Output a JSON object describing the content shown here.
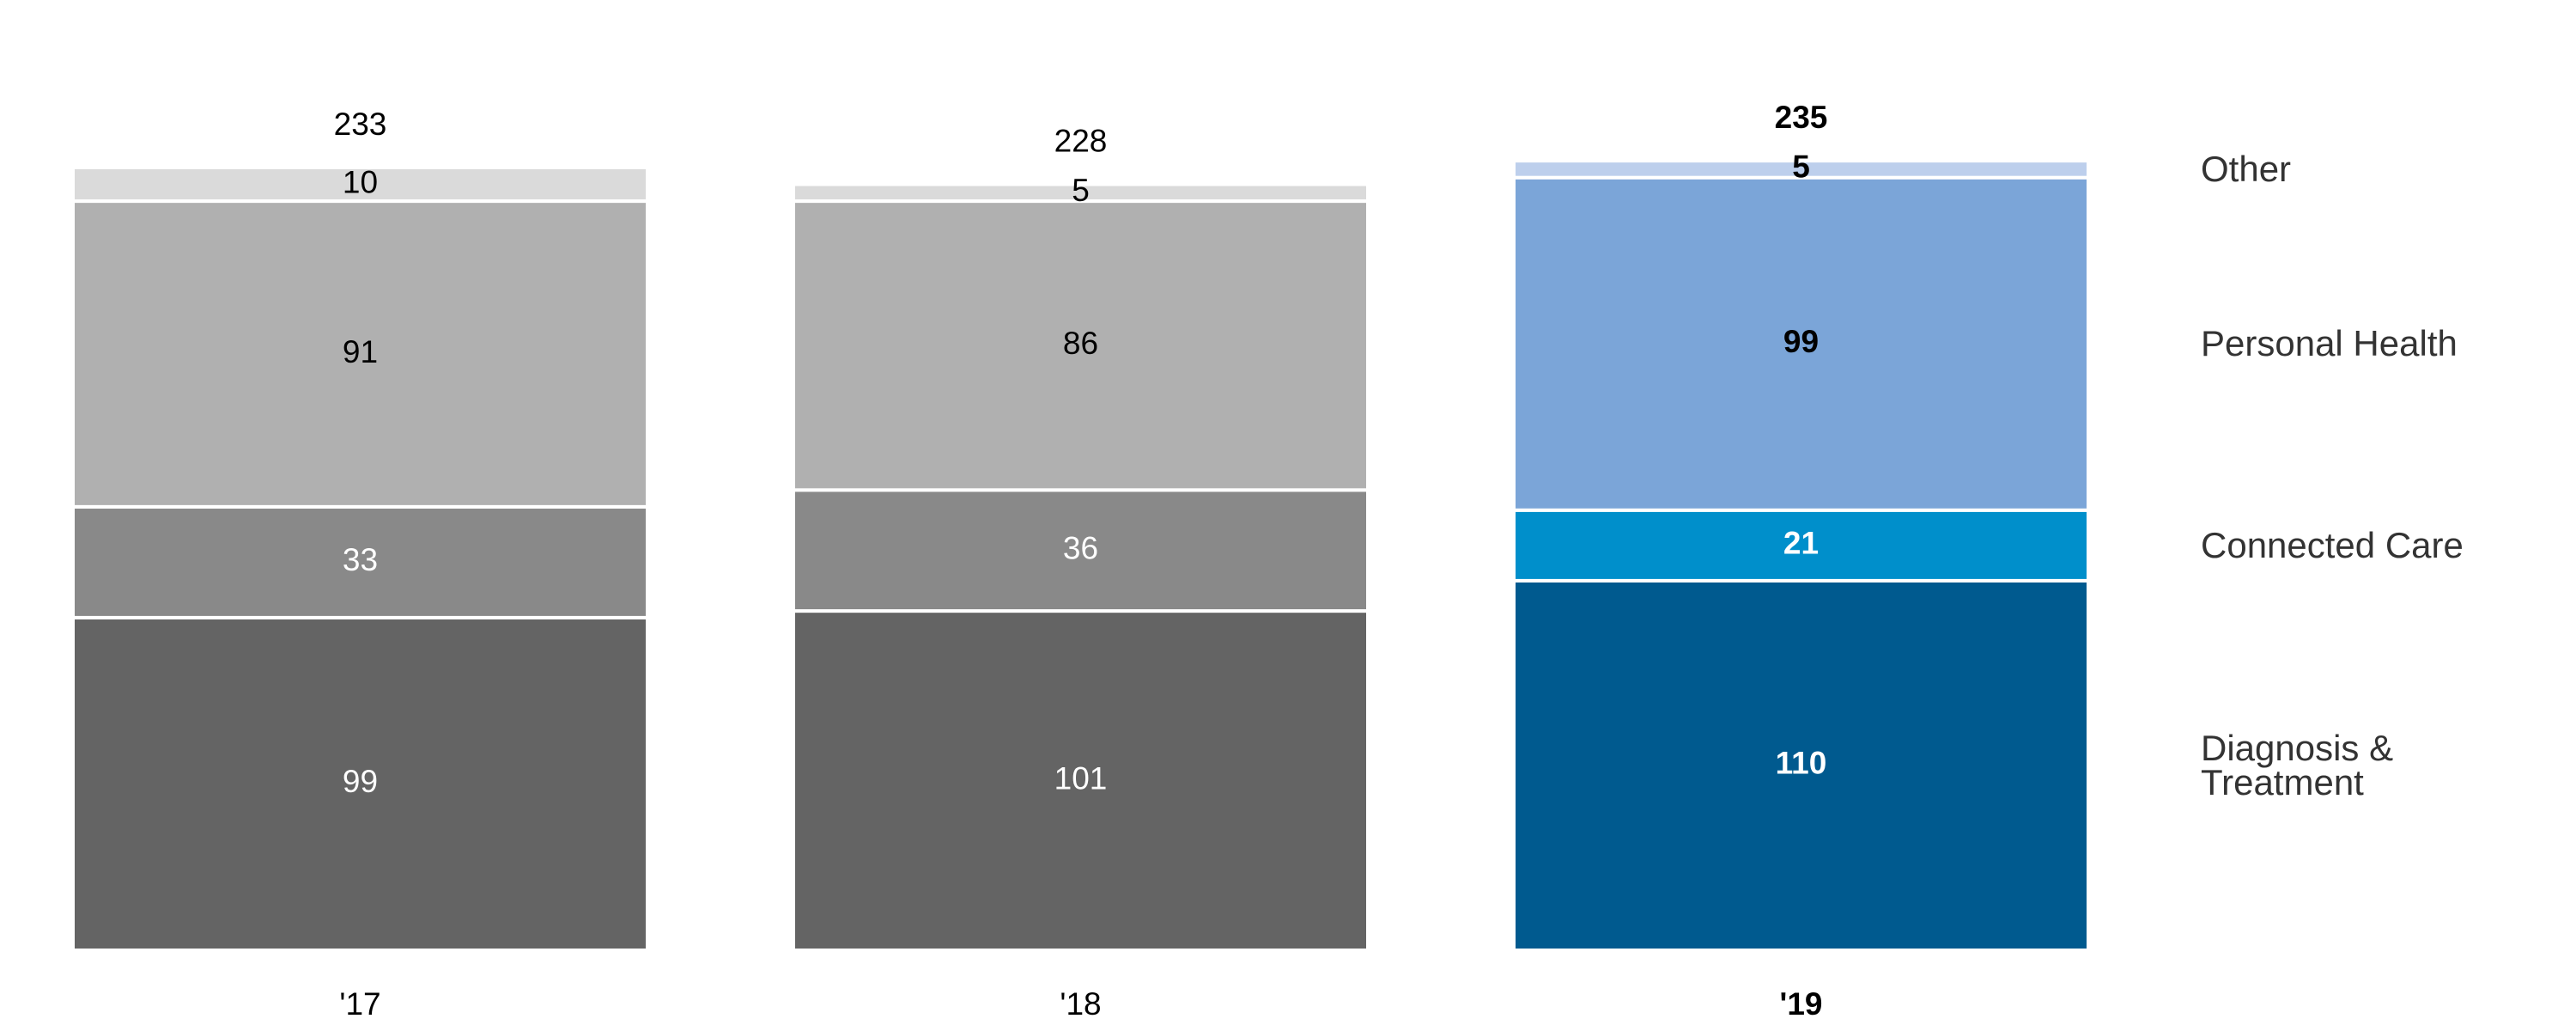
{
  "chart_data": {
    "type": "stacked-bar",
    "categories": [
      "'17",
      "'18",
      "'19"
    ],
    "series": [
      {
        "name": "Diagnosis & Treatment",
        "colors": [
          "#646464",
          "#646464",
          "#005a8f"
        ],
        "values": [
          99,
          101,
          110
        ]
      },
      {
        "name": "Connected Care",
        "colors": [
          "#898989",
          "#898989",
          "#008fcb"
        ],
        "values": [
          33,
          36,
          21
        ]
      },
      {
        "name": "Personal Health",
        "colors": [
          "#b0b0b0",
          "#b0b0b0",
          "#7ba5d8"
        ],
        "values": [
          91,
          86,
          99
        ]
      },
      {
        "name": "Other",
        "colors": [
          "#dadada",
          "#dadada",
          "#bdcfec"
        ],
        "values": [
          10,
          5,
          5
        ]
      }
    ],
    "totals": [
      233,
      228,
      235
    ]
  }
}
